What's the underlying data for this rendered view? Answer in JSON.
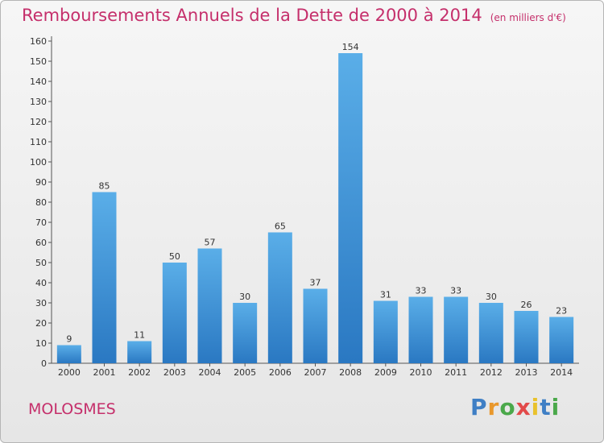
{
  "chart_data": {
    "type": "bar",
    "title": "Remboursements Annuels de la Dette de 2000 à 2014",
    "unit": "(en milliers d'€)",
    "categories": [
      "2000",
      "2001",
      "2002",
      "2003",
      "2004",
      "2005",
      "2006",
      "2007",
      "2008",
      "2009",
      "2010",
      "2011",
      "2012",
      "2013",
      "2014"
    ],
    "values": [
      9,
      85,
      11,
      50,
      57,
      30,
      65,
      37,
      154,
      31,
      33,
      33,
      30,
      26,
      23
    ],
    "ylim": [
      0,
      160
    ],
    "yticks": [
      0,
      10,
      20,
      30,
      40,
      50,
      60,
      70,
      80,
      90,
      100,
      110,
      120,
      130,
      140,
      150,
      160
    ],
    "grid": false,
    "xlabel": "",
    "ylabel": "",
    "bar_color": "#3d8fd8"
  },
  "footer": {
    "commune": "MOLOSMES"
  },
  "logo": {
    "text": "Proxiti",
    "letters": [
      {
        "ch": "P",
        "color": "#3f7fc5"
      },
      {
        "ch": "r",
        "color": "#e9982c"
      },
      {
        "ch": "o",
        "color": "#4aa84a"
      },
      {
        "ch": "x",
        "color": "#e24a4a"
      },
      {
        "ch": "i",
        "color": "#e9c22c"
      },
      {
        "ch": "t",
        "color": "#3f7fc5"
      },
      {
        "ch": "i",
        "color": "#4aa84a"
      }
    ]
  },
  "colors": {
    "title": "#c52f6b",
    "bar": "#3d8fd8",
    "axis": "#555555"
  }
}
